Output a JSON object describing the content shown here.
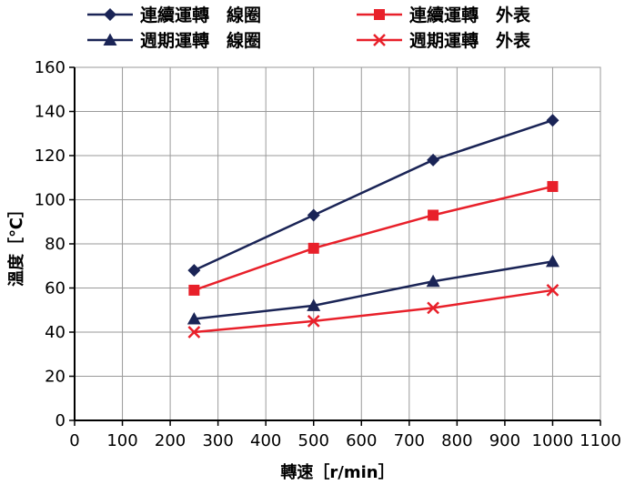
{
  "chart_data": {
    "type": "line",
    "xlabel": "轉速［r/min］",
    "ylabel": "溫度［℃］",
    "xlim": [
      0,
      1100
    ],
    "ylim": [
      0,
      160
    ],
    "x_ticks": [
      "0",
      "100",
      "200",
      "300",
      "400",
      "500",
      "600",
      "700",
      "800",
      "900",
      "1000",
      "1100"
    ],
    "y_ticks": [
      "0",
      "20",
      "40",
      "60",
      "80",
      "100",
      "120",
      "140",
      "160"
    ],
    "grid": true,
    "legend_position": "top",
    "x": [
      250,
      500,
      750,
      1000
    ],
    "series": [
      {
        "name": "連續運轉　線圈",
        "values": [
          68,
          93,
          118,
          136
        ],
        "color": "#1a2456",
        "marker": "diamond"
      },
      {
        "name": "週期運轉　線圈",
        "values": [
          46,
          52,
          63,
          72
        ],
        "color": "#1a2456",
        "marker": "triangle"
      },
      {
        "name": "連續運轉　外表",
        "values": [
          59,
          78,
          93,
          106
        ],
        "color": "#e8202a",
        "marker": "square"
      },
      {
        "name": "週期運轉　外表",
        "values": [
          40,
          45,
          51,
          59
        ],
        "color": "#e8202a",
        "marker": "x"
      }
    ]
  }
}
